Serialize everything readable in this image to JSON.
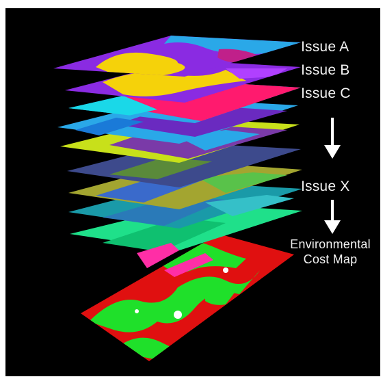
{
  "labels": {
    "issue_a": "Issue A",
    "issue_b": "Issue B",
    "issue_c": "Issue C",
    "issue_x": "Issue X",
    "environmental_line1": "Environmental",
    "environmental_line2": "Cost Map"
  },
  "icons": {
    "down_arrow_1": "down-arrow-icon",
    "down_arrow_2": "down-arrow-icon"
  },
  "colors": {
    "background": "#000000",
    "label_text": "#f2f2f2",
    "arrow": "#ffffff",
    "layer_purple": "#8a2be2",
    "layer_yellow": "#f5d20a",
    "layer_magenta": "#ff1a6e",
    "layer_blue": "#2aa8e8",
    "layer_olive": "#a3a530",
    "layer_cyan": "#1a9aa8",
    "layer_green": "#1fe08a",
    "layer_pink": "#ff2ea6",
    "cost_map_red": "#e01010",
    "cost_map_green": "#1fe02a"
  }
}
